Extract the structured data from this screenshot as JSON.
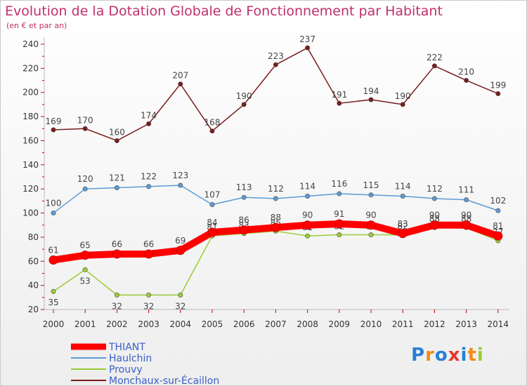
{
  "title": "Evolution de la Dotation Globale de Fonctionnement par Habitant",
  "subtitle": "(en € et par an)",
  "logo": [
    "P",
    "r",
    "o",
    "x",
    "i",
    "t",
    "i"
  ],
  "colors": {
    "title": "#c0306a",
    "THIANT": "#ff0000",
    "Haulchin": "#5b9bd5",
    "Prouvy": "#99cc33",
    "Monchaux-sur-Écaillon": "#7a1c1c",
    "legendText": "#3a5fc8"
  },
  "chart_data": {
    "type": "line",
    "title": "Evolution de la Dotation Globale de Fonctionnement par Habitant",
    "subtitle": "(en € et par an)",
    "xlabel": "",
    "ylabel": "",
    "x": [
      "2000",
      "2001",
      "2002",
      "2003",
      "2004",
      "2005",
      "2006",
      "2007",
      "2008",
      "2009",
      "2010",
      "2011",
      "2012",
      "2013",
      "2014"
    ],
    "yticks": [
      20,
      40,
      60,
      80,
      100,
      120,
      140,
      160,
      180,
      200,
      220,
      240
    ],
    "ylim": [
      20,
      245
    ],
    "legend_position": "bottom-left",
    "series": [
      {
        "name": "THIANT",
        "color": "#ff0000",
        "values": [
          61,
          65,
          66,
          66,
          69,
          84,
          86,
          88,
          90,
          91,
          90,
          83,
          90,
          90,
          81
        ]
      },
      {
        "name": "Haulchin",
        "color": "#5b9bd5",
        "values": [
          100,
          120,
          121,
          122,
          123,
          107,
          113,
          112,
          114,
          116,
          115,
          114,
          112,
          111,
          102
        ]
      },
      {
        "name": "Prouvy",
        "color": "#99cc33",
        "values": [
          35,
          53,
          32,
          32,
          32,
          81,
          83,
          85,
          81,
          82,
          82,
          82,
          88,
          88,
          77
        ]
      },
      {
        "name": "Monchaux-sur-Écaillon",
        "color": "#7a1c1c",
        "values": [
          169,
          170,
          160,
          174,
          207,
          168,
          190,
          223,
          237,
          191,
          194,
          190,
          222,
          210,
          199
        ]
      }
    ]
  }
}
